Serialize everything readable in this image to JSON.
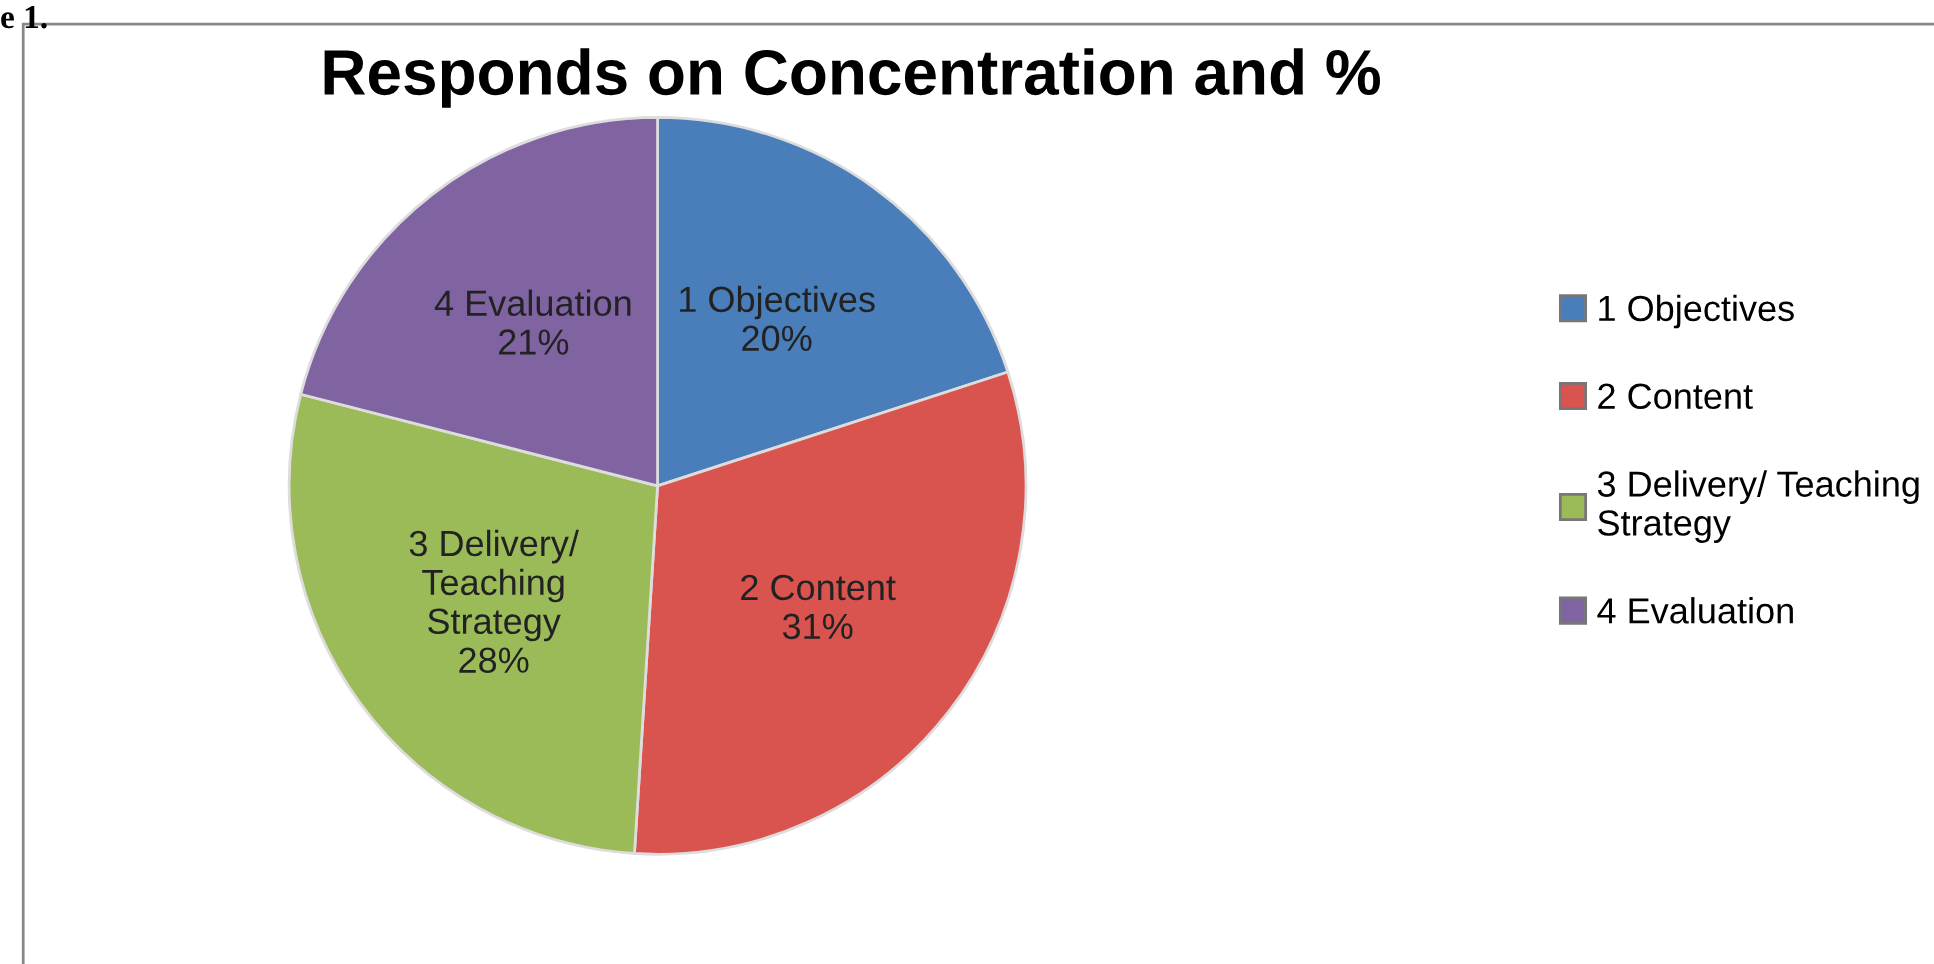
{
  "chart_data": {
    "type": "pie",
    "title": "Responds on Concentration and %",
    "categories": [
      "1 Objectives",
      "2 Content",
      "3 Delivery/ Teaching Strategy",
      "4 Evaluation"
    ],
    "values": [
      20,
      31,
      28,
      21
    ],
    "value_labels": [
      "20%",
      "31%",
      "28%",
      "21%"
    ],
    "colors": [
      "#4a7ebb",
      "#d9534f",
      "#9bbb59",
      "#8064a2"
    ],
    "legend": "right",
    "annotations": [
      "e 1."
    ]
  }
}
